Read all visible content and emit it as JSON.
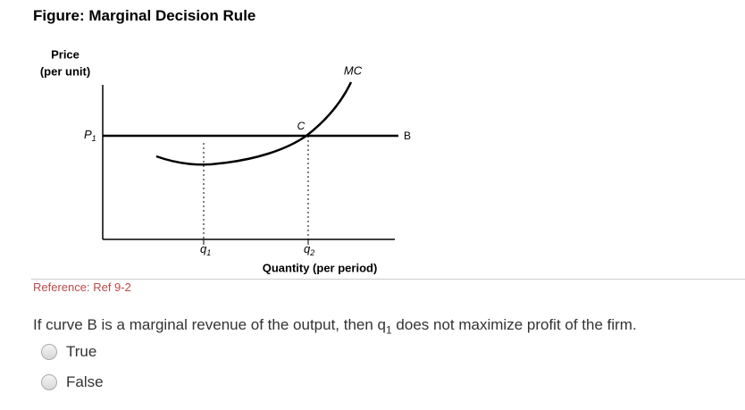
{
  "header": {
    "title": "Figure: Marginal Decision Rule"
  },
  "figure": {
    "y_axis_label": [
      "Price",
      "(per unit)"
    ],
    "price_label": {
      "main": "P",
      "sub": "1"
    },
    "curve_mc": "MC",
    "point_c": "C",
    "line_b": "B",
    "q1": {
      "main": "q",
      "sub": "1"
    },
    "q2": {
      "main": "q",
      "sub": "2"
    },
    "x_axis_label": "Quantity (per period)"
  },
  "reference": "Reference: Ref 9-2",
  "question": {
    "parts": [
      "If curve B is a marginal revenue of the output, then q",
      "1",
      " does not maximize profit of the firm."
    ]
  },
  "options": [
    "True",
    "False"
  ]
}
